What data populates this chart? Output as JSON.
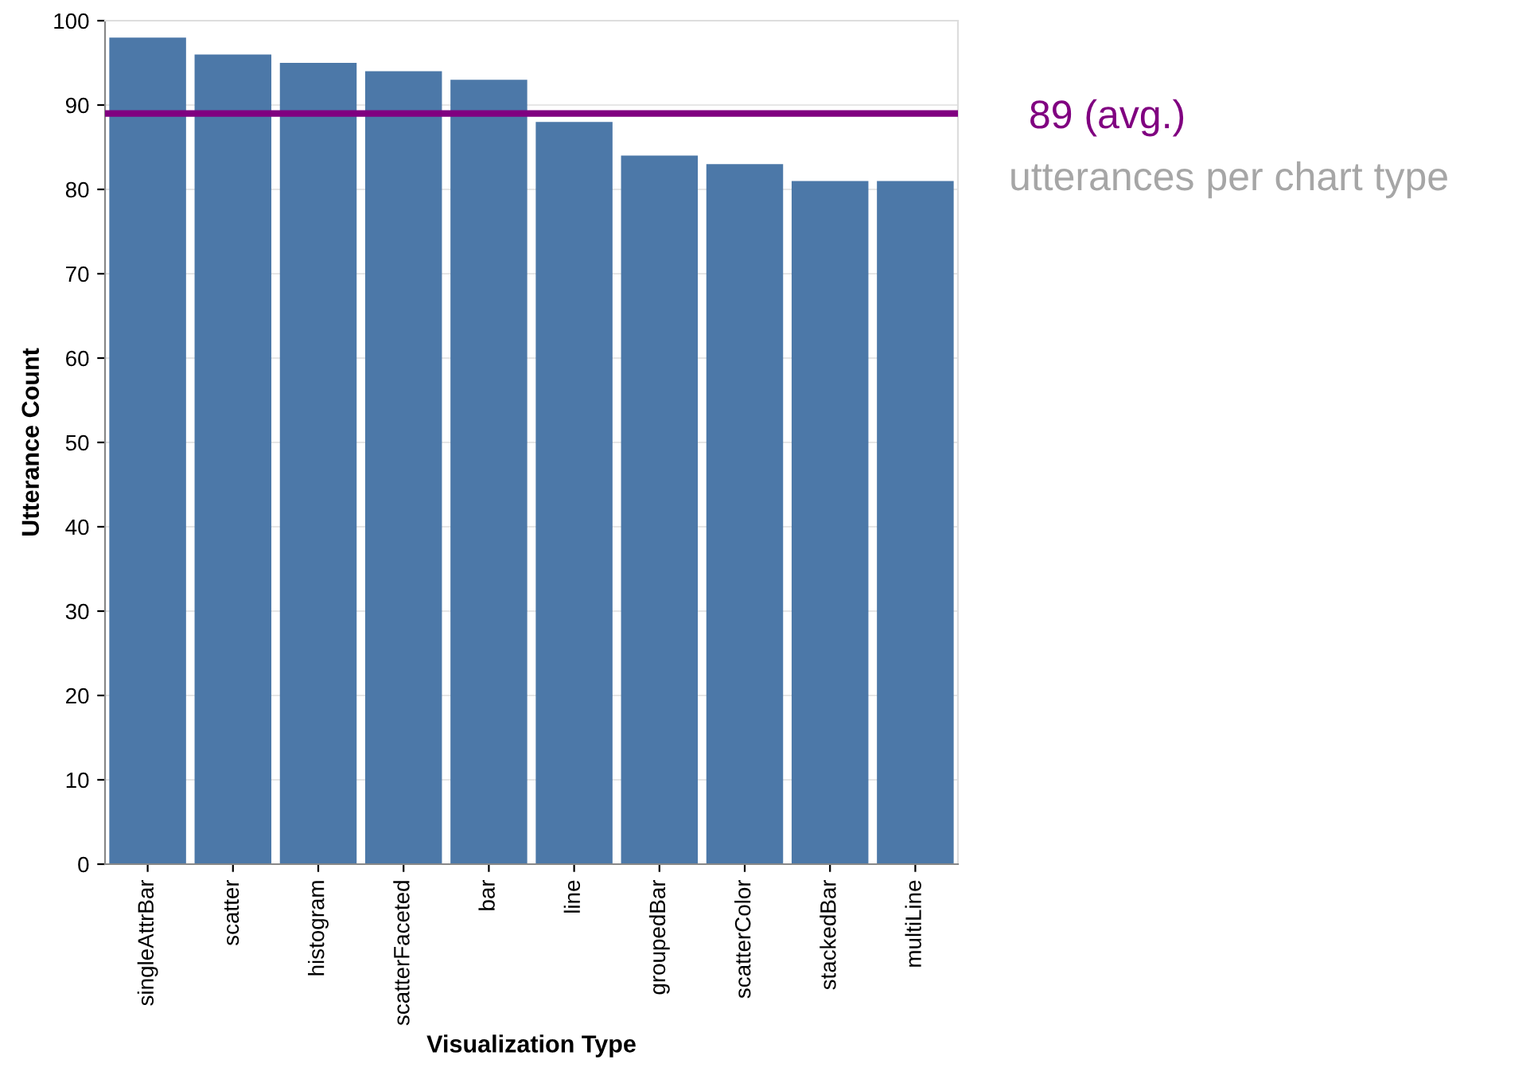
{
  "chart_data": {
    "type": "bar",
    "xlabel": "Visualization Type",
    "ylabel": "Utterance Count",
    "categories": [
      "singleAttrBar",
      "scatter",
      "histogram",
      "scatterFaceted",
      "bar",
      "line",
      "groupedBar",
      "scatterColor",
      "stackedBar",
      "multiLine"
    ],
    "values": [
      98,
      96,
      95,
      94,
      93,
      88,
      84,
      83,
      81,
      81
    ],
    "color": "#4c78a8",
    "ylim": [
      0,
      100
    ],
    "yticks": [
      0,
      10,
      20,
      30,
      40,
      50,
      60,
      70,
      80,
      90,
      100
    ],
    "grid": "y",
    "ref_lines": [
      {
        "axis": "y",
        "value": 89,
        "label": "89 (avg.)",
        "color": "#800080"
      }
    ],
    "annotations": [
      "utterances per chart type"
    ]
  }
}
